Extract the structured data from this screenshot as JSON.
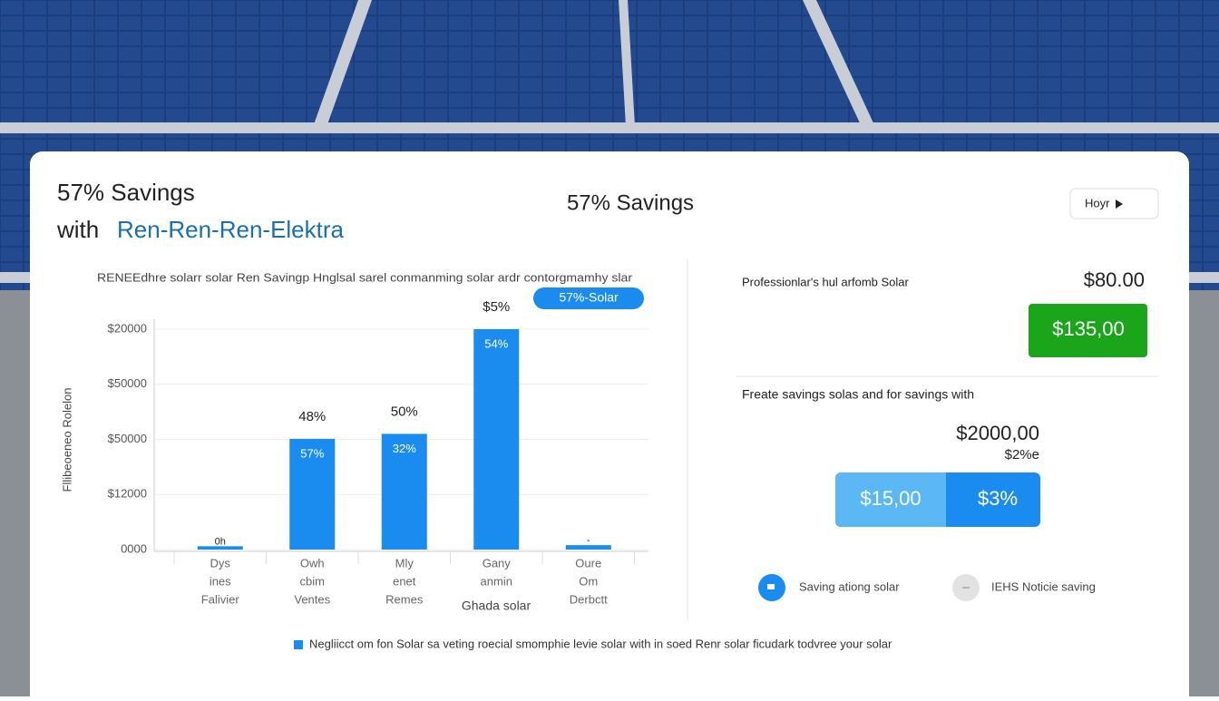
{
  "header": {
    "title": "57% Savings",
    "subtitle_prefix": "with",
    "subtitle_brand": "Ren-Ren-Ren-Elektra"
  },
  "center_title": "57% Savings",
  "dropdown": "Hoyr",
  "chart_data": {
    "type": "bar",
    "caption": "RENEEdhre solarr solar Ren Savingp Hnglsal sarel conmanming solar ardr contorgmamhy slar",
    "badge": "57%-Solar",
    "y_label": "Fllibeoeneo Rolelon",
    "x_label": "Ghada solar",
    "categories": [
      [
        "Dys",
        "ines",
        "Falivier"
      ],
      [
        "Owh",
        "cbim",
        "Ventes"
      ],
      [
        "Mly",
        "enet",
        "Remes"
      ],
      [
        "Gany",
        "anmin"
      ],
      [
        "Oure",
        "Om",
        "Derbctt"
      ]
    ],
    "values": [
      0.06,
      2.01,
      2.1,
      4.0,
      0.08
    ],
    "top_labels": [
      "0h",
      "48%",
      "50%",
      "$5%",
      "-"
    ],
    "inner_labels": [
      null,
      "57%",
      "32%",
      "54%",
      null
    ],
    "color": "#1a8cf0",
    "ylim": [
      0,
      4
    ],
    "yticks": [
      {
        "value": 0,
        "label": "0000"
      },
      {
        "value": 1,
        "label": "$12000"
      },
      {
        "value": 2,
        "label": "$50000"
      },
      {
        "value": 3,
        "label": "$50000"
      },
      {
        "value": 4,
        "label": "$20000"
      }
    ],
    "grid": true
  },
  "right_panel": {
    "label": "Professionlar's hul arfomb Solar",
    "price": "$80.00",
    "green_button": "$135,00",
    "savings_text": "Freate savings solas and for savings with",
    "total": "$2000,00",
    "total_sub": "$2%e",
    "split_left": "$15,00",
    "split_right": "$3%",
    "legend": [
      "Saving ationg solar",
      "IEHS Noticie saving"
    ]
  },
  "footer": "Negliicct om fon Solar sa veting roecial smomphie levie solar with in soed Renr solar ficudark todvree your solar"
}
